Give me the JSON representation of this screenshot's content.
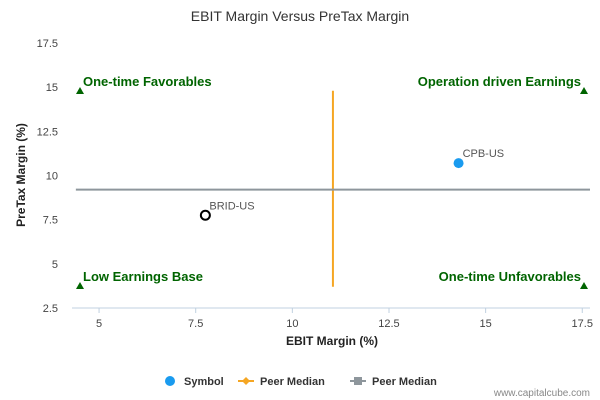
{
  "chart_data": {
    "type": "scatter",
    "title": "EBIT Margin Versus PreTax Margin",
    "xlabel": "EBIT Margin (%)",
    "ylabel": "PreTax Margin (%)",
    "xlim": [
      4.3,
      17.7
    ],
    "ylim": [
      2.5,
      17.5
    ],
    "x_ticks": [
      "5",
      "7.5",
      "10",
      "12.5",
      "15",
      "17.5"
    ],
    "y_ticks": [
      "2.5",
      "5",
      "7.5",
      "10",
      "12.5",
      "15",
      "17.5"
    ],
    "points": [
      {
        "label": "CPB-US",
        "x": 14.3,
        "y": 10.7,
        "style": "filled",
        "color": "#1a9bef"
      },
      {
        "label": "BRID-US",
        "x": 7.75,
        "y": 7.75,
        "style": "hollow",
        "color": "#000000"
      }
    ],
    "peer_median_x": 11.05,
    "peer_median_x_range": [
      3.7,
      14.8
    ],
    "peer_median_y": 9.2,
    "peer_median_y_range": [
      4.4,
      17.7
    ],
    "quadrants": {
      "top_left": "One-time Favorables",
      "top_right": "Operation driven Earnings",
      "bottom_left": "Low Earnings Base",
      "bottom_right": "One-time Unfavorables"
    },
    "quadrant_color": "#006400",
    "legend": [
      {
        "label": "Symbol",
        "marker": "dot",
        "color": "#1a9bef"
      },
      {
        "label": "Peer Median",
        "marker": "diamond-line",
        "color": "#f5a623"
      },
      {
        "label": "Peer Median",
        "marker": "square-line",
        "color": "#8e969c"
      }
    ],
    "grid": false,
    "legend_position": "bottom"
  },
  "watermark": "www.capitalcube.com"
}
